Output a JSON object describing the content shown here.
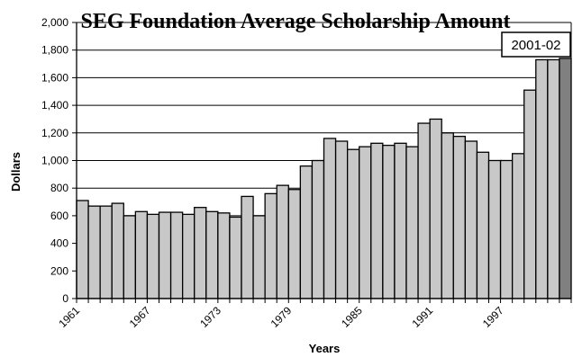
{
  "chart_data": {
    "type": "bar",
    "title": "SEG Foundation Average Scholarship Amount",
    "xlabel": "Years",
    "ylabel": "Dollars",
    "ylim": [
      0,
      2000
    ],
    "yticks": [
      0,
      200,
      400,
      600,
      800,
      1000,
      1200,
      1400,
      1600,
      1800,
      2000
    ],
    "ytick_labels": [
      "0",
      "200",
      "400",
      "600",
      "800",
      "1,000",
      "1,200",
      "1,400",
      "1,600",
      "1,800",
      "2,000"
    ],
    "xtick_labels": [
      "1961",
      "1967",
      "1973",
      "1979",
      "1985",
      "1991",
      "1997"
    ],
    "grid": true,
    "annotation": "2001-02",
    "categories": [
      "1961",
      "1962",
      "1963",
      "1964",
      "1965",
      "1966",
      "1967",
      "1968",
      "1969",
      "1970",
      "1971",
      "1972",
      "1973",
      "1974",
      "1975",
      "1976",
      "1977",
      "1978",
      "1979",
      "1980",
      "1981",
      "1982",
      "1983",
      "1984",
      "1985",
      "1986",
      "1987",
      "1988",
      "1989",
      "1990",
      "1991",
      "1992",
      "1993",
      "1994",
      "1995",
      "1996",
      "1997",
      "1998",
      "1999",
      "2000",
      "2001",
      "2002"
    ],
    "values": [
      710,
      670,
      670,
      690,
      600,
      630,
      610,
      625,
      625,
      610,
      660,
      630,
      620,
      590,
      740,
      600,
      760,
      820,
      790,
      960,
      1000,
      1160,
      1140,
      1080,
      1100,
      1125,
      1110,
      1125,
      1100,
      1270,
      1300,
      1200,
      1175,
      1140,
      1060,
      1000,
      1000,
      1050,
      1510,
      1730,
      1730,
      1740
    ],
    "colors": {
      "bar": "#c8c8c8",
      "highlight_bar": "#808080",
      "bar_edge": "#000000",
      "grid": "#000000"
    }
  }
}
